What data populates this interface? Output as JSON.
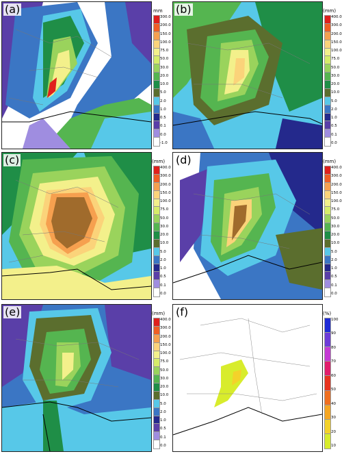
{
  "figure": {
    "panels": [
      {
        "id": "a",
        "label": "(a)",
        "unit": "mm",
        "ticks": [
          "300.0",
          "200.0",
          "150.0",
          "100.0",
          "75.0",
          "50.0",
          "30.0",
          "20.0",
          "10.0",
          "5.0",
          "2.0",
          "1.0",
          "0.5",
          "0.1",
          "0.0",
          "-1.0"
        ]
      },
      {
        "id": "b",
        "label": "(b)",
        "unit": "(mm)",
        "ticks": [
          "400.0",
          "300.0",
          "200.0",
          "150.0",
          "100.0",
          "75.0",
          "50.0",
          "30.0",
          "20.0",
          "10.0",
          "5.0",
          "2.0",
          "1.0",
          "0.5",
          "0.1",
          "0.0"
        ]
      },
      {
        "id": "c",
        "label": "(c)",
        "unit": "(mm)",
        "ticks": [
          "400.0",
          "300.0",
          "200.0",
          "150.0",
          "100.0",
          "75.0",
          "50.0",
          "30.0",
          "20.0",
          "10.0",
          "5.0",
          "2.0",
          "1.0",
          "0.5",
          "0.1",
          "0.0"
        ]
      },
      {
        "id": "d",
        "label": "(d)",
        "unit": "(mm)",
        "ticks": [
          "400.0",
          "300.0",
          "200.0",
          "150.0",
          "100.0",
          "75.0",
          "50.0",
          "30.0",
          "20.0",
          "10.0",
          "5.0",
          "2.0",
          "1.0",
          "0.5",
          "0.1",
          "0.0"
        ]
      },
      {
        "id": "e",
        "label": "(e)",
        "unit": "(mm)",
        "ticks": [
          "400.0",
          "300.0",
          "200.0",
          "150.0",
          "100.0",
          "75.0",
          "50.0",
          "30.0",
          "20.0",
          "10.0",
          "5.0",
          "2.0",
          "1.0",
          "0.5",
          "0.1",
          "0.0"
        ]
      },
      {
        "id": "f",
        "label": "(f)",
        "unit": "(%)",
        "ticks": [
          "100",
          "90",
          "80",
          "70",
          "60",
          "50",
          "40",
          "30",
          "20",
          "10"
        ]
      }
    ],
    "precip_colors": [
      "#e0201c",
      "#f05e25",
      "#f6a04f",
      "#fbd37a",
      "#f3f08b",
      "#d6ec6a",
      "#9ad35c",
      "#55b550",
      "#1f8e47",
      "#5b6e2e",
      "#57c8e8",
      "#3b76c4",
      "#24298c",
      "#5a3fa8",
      "#9f8de0",
      "#ffffff"
    ],
    "prob_colors": [
      "#1e2bd6",
      "#6d3bd8",
      "#c43ad4",
      "#e21e6c",
      "#e8341f",
      "#f06f20",
      "#f5a623",
      "#f4d22a",
      "#d8ec2c"
    ]
  }
}
